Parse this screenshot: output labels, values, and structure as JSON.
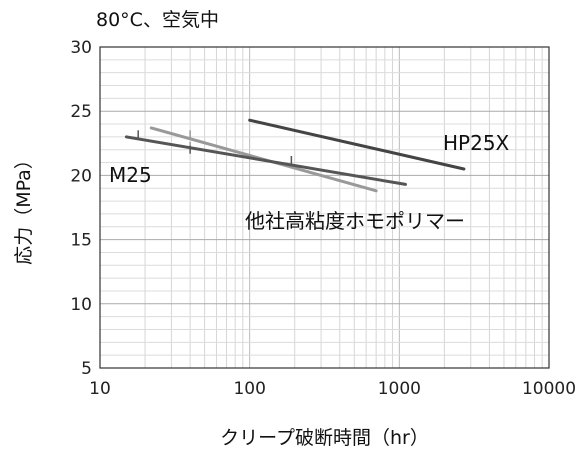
{
  "chart_data": {
    "type": "line",
    "title": "80°C、空気中",
    "xlabel": "クリープ破断時間（hr）",
    "ylabel": "応力（MPa）",
    "x_scale": "log",
    "xlim": [
      10,
      10000
    ],
    "ylim": [
      5,
      30
    ],
    "x_ticks": [
      "10",
      "100",
      "1000",
      "10000"
    ],
    "y_ticks": [
      "5",
      "10",
      "15",
      "20",
      "25",
      "30"
    ],
    "grid": true,
    "series": [
      {
        "name": "HP25X",
        "color": "#444444",
        "x": [
          100,
          2700
        ],
        "y": [
          24.3,
          20.5
        ],
        "markers": []
      },
      {
        "name": "M25",
        "color": "#555555",
        "x": [
          15,
          1100
        ],
        "y": [
          23.0,
          19.3
        ],
        "markers": [
          [
            18,
            23.2
          ],
          [
            40,
            22.0
          ],
          [
            190,
            21.2
          ]
        ]
      },
      {
        "name": "他社高粘度ホモポリマー",
        "color": "#999999",
        "x": [
          22,
          700
        ],
        "y": [
          23.7,
          18.8
        ],
        "markers": [
          [
            40,
            23.2
          ],
          [
            40,
            22.3
          ]
        ]
      }
    ]
  }
}
